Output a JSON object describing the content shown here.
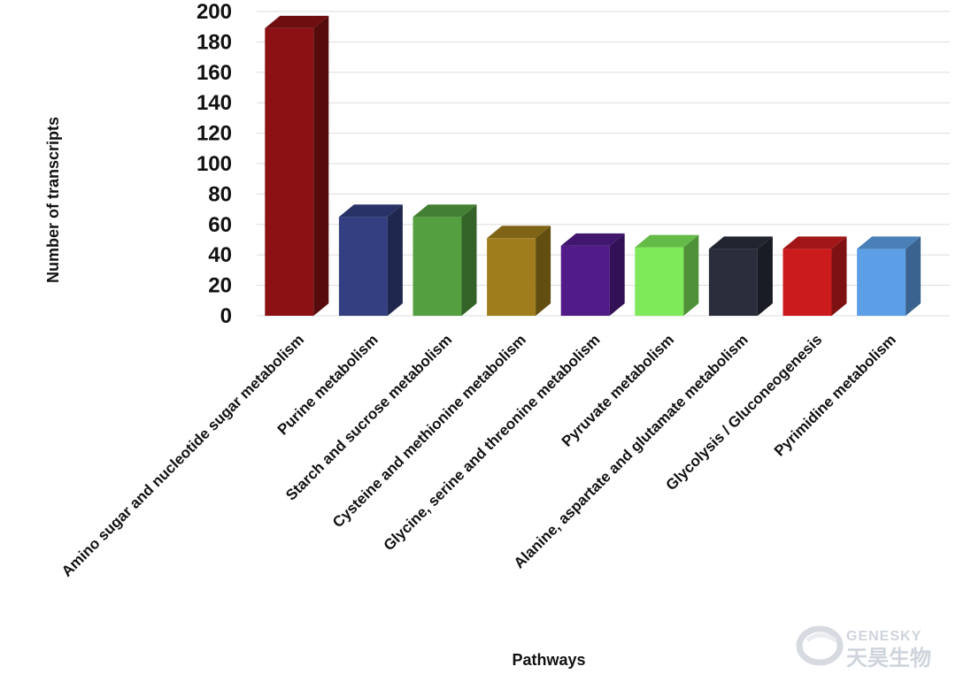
{
  "chart_data": {
    "type": "bar",
    "style": "3d",
    "categories": [
      "Amino sugar and nucleotide sugar metabolism",
      "Purine metabolism",
      "Starch and sucrose metabolism",
      "Cysteine and methionine metabolism",
      "Glycine, serine and threonine metabolism",
      "Pyruvate metabolism",
      "Alanine, aspartate and glutamate metabolism",
      "Glycolysis / Gluconeogenesis",
      "Pyrimidine metabolism"
    ],
    "values": [
      189,
      65,
      65,
      51,
      46,
      45,
      44,
      44,
      44
    ],
    "colors": [
      "#8b1114",
      "#333f80",
      "#54a041",
      "#a07d1c",
      "#511b8a",
      "#7eea5a",
      "#2a2d3b",
      "#cc1b1d",
      "#5d9fe6"
    ],
    "xlabel": "Pathways",
    "ylabel": "Number of transcripts",
    "ylim": [
      0,
      200
    ],
    "yticks": [
      "0",
      "20",
      "40",
      "60",
      "80",
      "100",
      "120",
      "140",
      "160",
      "180",
      "200"
    ],
    "grid": true,
    "legend": "none"
  },
  "watermark": {
    "latin": "GENESKY",
    "chinese": "天昊生物"
  }
}
